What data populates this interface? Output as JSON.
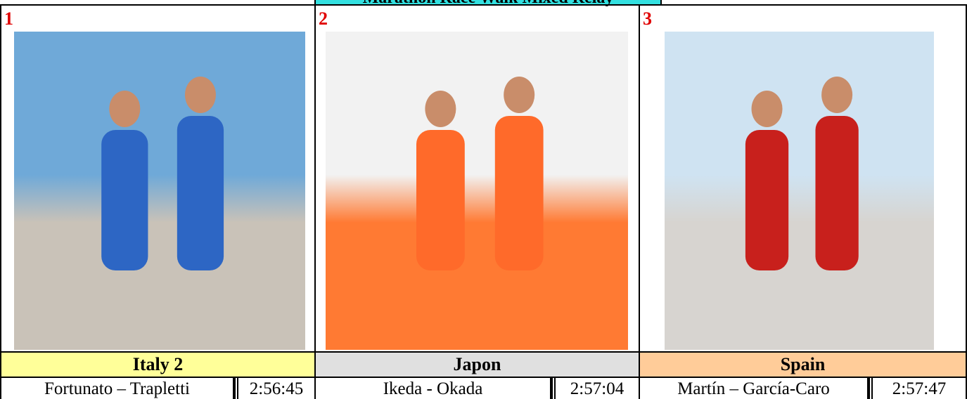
{
  "title": "Marathon Race Walk Mixed Relay",
  "podium": [
    {
      "rank": "1",
      "country": "Italy 2",
      "athletes": "Fortunato – Trapletti",
      "time": "2:56:45"
    },
    {
      "rank": "2",
      "country": "Japon",
      "athletes": "Ikeda - Okada",
      "time": "2:57:04"
    },
    {
      "rank": "3",
      "country": "Spain",
      "athletes": "Martín – García-Caro",
      "time": "2:57:47"
    }
  ]
}
